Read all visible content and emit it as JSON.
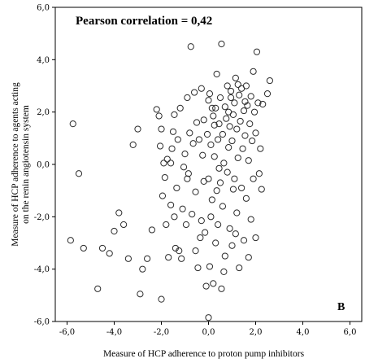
{
  "chart_data": {
    "type": "scatter",
    "title": "",
    "annotation": "Pearson correlation = 0,42",
    "panel_label": "B",
    "xlabel": "Measure of HCP adherence to proton pump inhibitors",
    "ylabel_lines": [
      "Measure of HCP adherence to agents acting",
      "on the renin angiotensin system"
    ],
    "xlim": [
      -6.5,
      6.5
    ],
    "ylim": [
      -6.0,
      6.0
    ],
    "xticks": [
      "-6,0",
      "-4,0",
      "-2,0",
      "0,0",
      "2,0",
      "4,0",
      "6,0"
    ],
    "yticks": [
      "6,0",
      "4,0",
      "2,0",
      "0,0",
      "-2,0",
      "-4,0",
      "-6,0"
    ],
    "grid": false,
    "marker": "open-circle",
    "points": [
      [
        -5.85,
        -2.9
      ],
      [
        -5.75,
        1.55
      ],
      [
        -5.5,
        -0.35
      ],
      [
        -5.3,
        -3.2
      ],
      [
        -4.7,
        -4.75
      ],
      [
        -4.5,
        -3.2
      ],
      [
        -4.2,
        -3.4
      ],
      [
        -4.0,
        -2.55
      ],
      [
        -3.8,
        -1.85
      ],
      [
        -3.6,
        -2.3
      ],
      [
        -3.4,
        -3.6
      ],
      [
        -3.2,
        0.75
      ],
      [
        -3.0,
        1.35
      ],
      [
        -2.9,
        -4.95
      ],
      [
        -2.8,
        -4.0
      ],
      [
        -2.6,
        -3.6
      ],
      [
        -2.4,
        -2.5
      ],
      [
        -2.2,
        2.1
      ],
      [
        -2.1,
        1.85
      ],
      [
        -2.0,
        1.35
      ],
      [
        -1.95,
        -1.2
      ],
      [
        -1.9,
        0.05
      ],
      [
        -1.85,
        -0.5
      ],
      [
        -1.8,
        -2.3
      ],
      [
        -1.75,
        0.2
      ],
      [
        -1.7,
        -3.55
      ],
      [
        -1.6,
        -1.55
      ],
      [
        -1.55,
        0.6
      ],
      [
        -1.5,
        1.25
      ],
      [
        -1.45,
        -2.0
      ],
      [
        -1.4,
        -3.2
      ],
      [
        -1.35,
        -0.9
      ],
      [
        -1.3,
        0.95
      ],
      [
        -1.25,
        -3.3
      ],
      [
        -1.2,
        2.15
      ],
      [
        -1.15,
        -3.6
      ],
      [
        -1.1,
        -1.7
      ],
      [
        -1.05,
        -0.1
      ],
      [
        -1.0,
        0.4
      ],
      [
        -0.95,
        -2.3
      ],
      [
        -0.9,
        2.55
      ],
      [
        -0.85,
        -0.35
      ],
      [
        -0.8,
        1.2
      ],
      [
        -0.75,
        4.5
      ],
      [
        -0.7,
        -1.9
      ],
      [
        -0.65,
        0.8
      ],
      [
        -0.6,
        2.75
      ],
      [
        -0.55,
        -3.3
      ],
      [
        -0.5,
        1.6
      ],
      [
        -0.45,
        -3.95
      ],
      [
        -0.4,
        0.95
      ],
      [
        -0.35,
        -2.8
      ],
      [
        -0.3,
        2.9
      ],
      [
        -0.25,
        0.35
      ],
      [
        -0.2,
        -0.65
      ],
      [
        -0.15,
        -2.6
      ],
      [
        -0.1,
        -4.65
      ],
      [
        -0.05,
        1.15
      ],
      [
        0.0,
        2.45
      ],
      [
        0.0,
        -0.55
      ],
      [
        0.05,
        -3.9
      ],
      [
        0.05,
        2.7
      ],
      [
        0.1,
        0.75
      ],
      [
        0.1,
        -2.0
      ],
      [
        0.15,
        -1.35
      ],
      [
        0.2,
        1.85
      ],
      [
        0.2,
        -4.55
      ],
      [
        0.25,
        0.3
      ],
      [
        0.3,
        2.15
      ],
      [
        0.3,
        -3.0
      ],
      [
        0.35,
        3.45
      ],
      [
        0.35,
        -1.0
      ],
      [
        0.4,
        0.95
      ],
      [
        0.4,
        -2.3
      ],
      [
        0.45,
        1.55
      ],
      [
        0.5,
        -0.7
      ],
      [
        0.5,
        2.55
      ],
      [
        0.55,
        -4.75
      ],
      [
        0.55,
        4.6
      ],
      [
        0.6,
        1.15
      ],
      [
        0.6,
        -1.6
      ],
      [
        0.65,
        0.05
      ],
      [
        0.7,
        2.2
      ],
      [
        0.7,
        -3.5
      ],
      [
        0.75,
        1.75
      ],
      [
        0.8,
        -0.3
      ],
      [
        0.8,
        3.0
      ],
      [
        0.85,
        0.65
      ],
      [
        0.9,
        -2.45
      ],
      [
        0.9,
        1.45
      ],
      [
        0.95,
        2.55
      ],
      [
        1.0,
        -3.1
      ],
      [
        1.0,
        0.9
      ],
      [
        1.05,
        1.9
      ],
      [
        1.1,
        -0.55
      ],
      [
        1.1,
        2.35
      ],
      [
        1.15,
        3.3
      ],
      [
        1.2,
        1.35
      ],
      [
        1.2,
        -1.85
      ],
      [
        1.25,
        0.25
      ],
      [
        1.3,
        2.65
      ],
      [
        1.3,
        -3.95
      ],
      [
        1.35,
        1.65
      ],
      [
        1.4,
        -0.9
      ],
      [
        1.4,
        2.9
      ],
      [
        1.45,
        0.6
      ],
      [
        1.5,
        2.05
      ],
      [
        1.5,
        -2.9
      ],
      [
        1.55,
        1.1
      ],
      [
        1.6,
        3.0
      ],
      [
        1.6,
        -1.3
      ],
      [
        1.65,
        2.25
      ],
      [
        1.7,
        0.15
      ],
      [
        1.7,
        -3.55
      ],
      [
        1.75,
        1.55
      ],
      [
        1.8,
        2.6
      ],
      [
        1.8,
        -2.1
      ],
      [
        1.85,
        0.9
      ],
      [
        1.9,
        3.55
      ],
      [
        1.9,
        -0.55
      ],
      [
        1.95,
        2.0
      ],
      [
        2.0,
        -2.8
      ],
      [
        2.0,
        1.2
      ],
      [
        2.05,
        4.3
      ],
      [
        2.1,
        2.35
      ],
      [
        2.15,
        -0.35
      ],
      [
        2.2,
        0.6
      ],
      [
        2.25,
        -0.95
      ],
      [
        2.3,
        2.3
      ],
      [
        2.5,
        2.7
      ],
      [
        2.6,
        3.2
      ],
      [
        -0.55,
        -1.05
      ],
      [
        -0.2,
        1.7
      ],
      [
        0.15,
        2.15
      ],
      [
        0.45,
        -0.15
      ],
      [
        0.85,
        2.0
      ],
      [
        1.05,
        -0.95
      ],
      [
        1.25,
        3.05
      ],
      [
        -1.6,
        0.05
      ],
      [
        -0.9,
        -0.55
      ],
      [
        0.25,
        1.5
      ],
      [
        0.95,
        2.8
      ],
      [
        0.0,
        -5.85
      ],
      [
        -2.0,
        -5.15
      ],
      [
        -2.05,
        0.7
      ],
      [
        -1.45,
        1.9
      ],
      [
        -0.3,
        -2.15
      ],
      [
        0.65,
        -4.1
      ],
      [
        1.15,
        -2.65
      ],
      [
        1.55,
        2.4
      ]
    ]
  }
}
